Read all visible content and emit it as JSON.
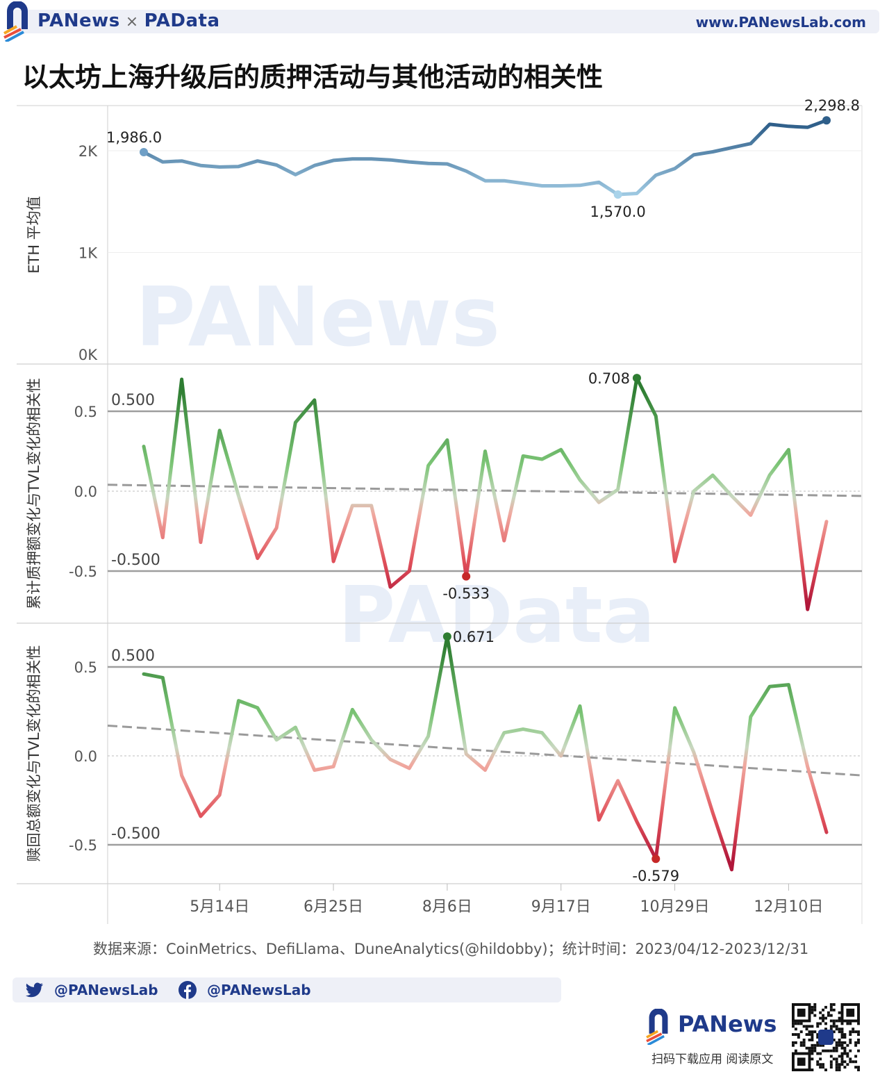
{
  "header": {
    "brand_left": "PANews",
    "brand_sep": "×",
    "brand_right": "PAData",
    "site": "www.PANewsLab.com"
  },
  "title": "以太坊上海升级后的质押活动与其他活动的相关性",
  "source": "数据来源：CoinMetrics、DefiLlama、DuneAnalytics(@hildobby)；统计时间：2023/04/12-2023/12/31",
  "social": {
    "twitter": "@PANewsLab",
    "facebook": "@PANewsLab"
  },
  "footer": {
    "brand": "PANews",
    "caption": "扫码下载应用  阅读原文"
  },
  "watermarks": {
    "top": "PANews",
    "middle": "PAData"
  },
  "colors": {
    "brand": "#1f3a8a",
    "positive": "#2e7d32",
    "negative": "#c62828",
    "eth_light": "#a9d3ea",
    "eth_dark": "#2f5f8a"
  },
  "chart_data": {
    "type": "line",
    "x_ticks": [
      {
        "i": 4,
        "label": "5月14日"
      },
      {
        "i": 10,
        "label": "6月25日"
      },
      {
        "i": 16,
        "label": "8月6日"
      },
      {
        "i": 22,
        "label": "9月17日"
      },
      {
        "i": 28,
        "label": "10月29日"
      },
      {
        "i": 34,
        "label": "12月10日"
      }
    ],
    "panels": [
      {
        "key": "eth",
        "ylabel": "ETH 平均值",
        "yticks": [
          {
            "v": 0,
            "label": "0K"
          },
          {
            "v": 1000,
            "label": "1K"
          },
          {
            "v": 2000,
            "label": "2K"
          }
        ],
        "ylim": [
          0,
          2400
        ],
        "values": [
          1986,
          1890,
          1900,
          1855,
          1840,
          1845,
          1900,
          1860,
          1765,
          1855,
          1905,
          1920,
          1920,
          1910,
          1890,
          1875,
          1870,
          1800,
          1705,
          1705,
          1680,
          1655,
          1655,
          1660,
          1690,
          1570,
          1580,
          1760,
          1825,
          1960,
          1990,
          2030,
          2070,
          2260,
          2240,
          2230,
          2298.8
        ],
        "labels": [
          {
            "i": 0,
            "text": "1,986.0",
            "pos": "above"
          },
          {
            "i": 25,
            "text": "1,570.0",
            "pos": "below"
          },
          {
            "i": 36,
            "text": "2,298.8",
            "pos": "above"
          }
        ]
      },
      {
        "key": "staking",
        "ylabel": "累计质押额变化与TVL变化的相关性",
        "yticks": [
          {
            "v": -0.5,
            "label": "-0.5"
          },
          {
            "v": 0,
            "label": "0.0"
          },
          {
            "v": 0.5,
            "label": "0.5"
          }
        ],
        "ylim": [
          -0.85,
          0.8
        ],
        "reflines": [
          {
            "v": 0.5,
            "label": "0.500"
          },
          {
            "v": -0.5,
            "label": "-0.500"
          }
        ],
        "trend": [
          0.04,
          -0.03
        ],
        "values": [
          0.28,
          -0.29,
          0.7,
          -0.32,
          0.38,
          -0.03,
          -0.42,
          -0.23,
          0.43,
          0.57,
          -0.44,
          -0.09,
          -0.09,
          -0.6,
          -0.5,
          0.16,
          0.32,
          -0.533,
          0.25,
          -0.31,
          0.22,
          0.2,
          0.26,
          0.07,
          -0.07,
          0.01,
          0.708,
          0.47,
          -0.44,
          0.0,
          0.1,
          -0.03,
          -0.15,
          0.1,
          0.26,
          -0.74,
          -0.19
        ],
        "labels": [
          {
            "i": 26,
            "text": "0.708",
            "pos": "left"
          },
          {
            "i": 17,
            "text": "-0.533",
            "pos": "below"
          }
        ]
      },
      {
        "key": "redemption",
        "ylabel": "赎回总额变化与TVL变化的相关性",
        "yticks": [
          {
            "v": -0.5,
            "label": "-0.5"
          },
          {
            "v": 0,
            "label": "0.0"
          },
          {
            "v": 0.5,
            "label": "0.5"
          }
        ],
        "ylim": [
          -0.72,
          0.75
        ],
        "reflines": [
          {
            "v": 0.5,
            "label": "0.500"
          },
          {
            "v": -0.5,
            "label": "-0.500"
          }
        ],
        "trend": [
          0.17,
          -0.11
        ],
        "values": [
          0.46,
          0.44,
          -0.11,
          -0.34,
          -0.22,
          0.31,
          0.27,
          0.09,
          0.16,
          -0.08,
          -0.06,
          0.26,
          0.09,
          -0.02,
          -0.07,
          0.11,
          0.671,
          0.01,
          -0.08,
          0.13,
          0.15,
          0.13,
          0.0,
          0.28,
          -0.36,
          -0.14,
          -0.37,
          -0.579,
          0.27,
          0.02,
          -0.32,
          -0.64,
          0.22,
          0.39,
          0.4,
          -0.06,
          -0.43
        ],
        "labels": [
          {
            "i": 16,
            "text": "0.671",
            "pos": "right"
          },
          {
            "i": 27,
            "text": "-0.579",
            "pos": "below"
          }
        ]
      }
    ]
  }
}
